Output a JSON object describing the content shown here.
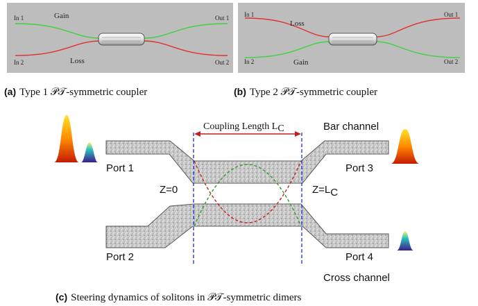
{
  "panel_a": {
    "in1": "In 1",
    "in2": "In 2",
    "out1": "Out 1",
    "out2": "Out 2",
    "gain": "Gain",
    "loss": "Loss",
    "caption_tag": "(a)",
    "caption": "Type 1 𝒫𝒯-symmetric coupler",
    "top_color": "#3fd13f",
    "bottom_color": "#e03030"
  },
  "panel_b": {
    "in1": "In 1",
    "in2": "In 2",
    "out1": "Out 1",
    "out2": "Out 2",
    "loss": "Loss",
    "gain": "Gain",
    "caption_tag": "(b)",
    "caption": "Type 2 𝒫𝒯-symmetric coupler",
    "top_color": "#e03030",
    "bottom_color": "#3fd13f"
  },
  "panel_c": {
    "coupling_length": "Coupling Length  L",
    "coupling_sub": "C",
    "bar_channel": "Bar channel",
    "cross_channel": "Cross channel",
    "port1": "Port 1",
    "port2": "Port 2",
    "port3": "Port 3",
    "port4": "Port 4",
    "z0": "Z=0",
    "zl": "Z=L",
    "zl_sub": "C",
    "caption_tag": "(c)",
    "caption": "Steering dynamics of solitons in 𝒫𝒯-symmetric dimers",
    "red_curve_color": "#c02020",
    "green_curve_color": "#2a9a2a",
    "marker_color": "#1a2fd0"
  }
}
